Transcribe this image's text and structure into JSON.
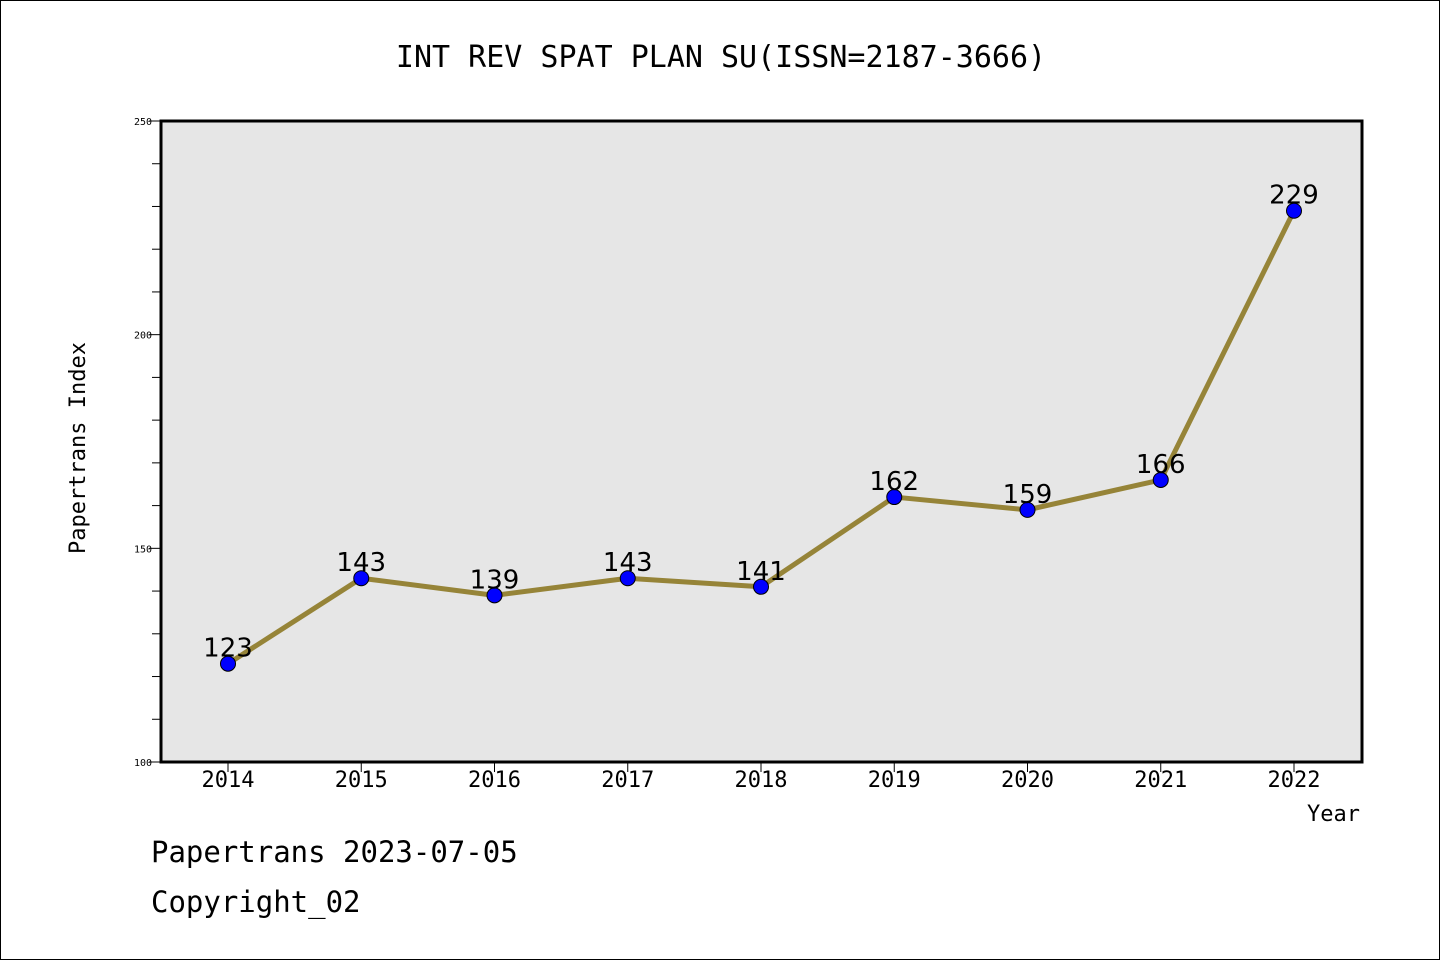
{
  "chart_data": {
    "type": "line",
    "title": "INT REV SPAT PLAN SU(ISSN=2187-3666)",
    "xlabel": "Year",
    "ylabel": "Papertrans Index",
    "categories": [
      "2014",
      "2015",
      "2016",
      "2017",
      "2018",
      "2019",
      "2020",
      "2021",
      "2022"
    ],
    "series": [
      {
        "values": [
          123,
          143,
          139,
          143,
          141,
          162,
          159,
          166,
          229
        ]
      }
    ],
    "ylim": [
      100,
      250
    ],
    "yticks": [
      100,
      150,
      200,
      250
    ],
    "grid": false,
    "colors": {
      "line": "#968438",
      "marker": "#0000ff",
      "plot_background": "#e6e6e6"
    }
  },
  "footer": {
    "line1": "Papertrans 2023-07-05",
    "line2": "Copyright_02"
  }
}
